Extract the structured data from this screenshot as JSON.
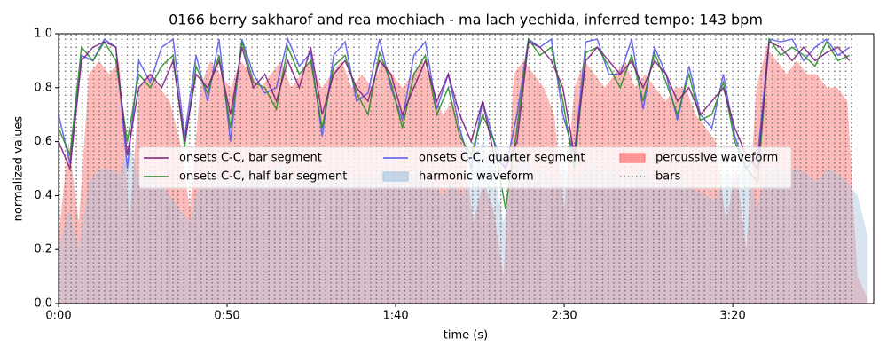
{
  "chart_data": {
    "type": "line",
    "title": "0166 berry sakharof and rea mochiach - ma lach yechida, inferred tempo: 143 bpm",
    "xlabel": "time (s)",
    "ylabel": "normalized values",
    "xlim": [
      0,
      241.8
    ],
    "xticks": [
      {
        "value": 0,
        "label": "0:00"
      },
      {
        "value": 50,
        "label": "0:50"
      },
      {
        "value": 100,
        "label": "1:40"
      },
      {
        "value": 150,
        "label": "2:30"
      },
      {
        "value": 200,
        "label": "3:20"
      }
    ],
    "ylim": [
      0,
      1
    ],
    "yticks": [
      {
        "value": 0,
        "label": "0.0"
      },
      0.2,
      0.4,
      0.6,
      0.8,
      {
        "value": 1,
        "label": "1.0"
      }
    ],
    "series": [
      {
        "name": "onsets C-C, bar segment",
        "type": "line",
        "color": "#7b1a7b",
        "x": [
          0,
          3.4,
          6.8,
          10.2,
          13.6,
          17,
          20.4,
          23.8,
          27.2,
          30.6,
          34,
          37.4,
          40.8,
          44.2,
          47.6,
          51,
          54.4,
          57.8,
          61.2,
          64.6,
          68,
          71.4,
          74.8,
          78.2,
          81.6,
          85,
          88.4,
          91.8,
          95.2,
          98.6,
          102,
          105.4,
          108.8,
          112.2,
          115.6,
          119,
          122.4,
          125.8,
          129.2,
          132.6,
          136,
          139.4,
          142.8,
          146.2,
          149.6,
          153,
          156.4,
          159.8,
          163.2,
          166.6,
          170,
          173.4,
          176.8,
          180.2,
          183.6,
          187,
          190.4,
          193.8,
          197.2,
          200.6,
          204,
          207.4,
          210.8,
          214.2,
          217.6,
          221,
          224.4,
          227.8,
          231.2,
          234.6
        ],
        "values": [
          0.6,
          0.5,
          0.9,
          0.95,
          0.97,
          0.95,
          0.55,
          0.8,
          0.85,
          0.8,
          0.9,
          0.6,
          0.85,
          0.8,
          0.9,
          0.7,
          0.95,
          0.8,
          0.85,
          0.75,
          0.9,
          0.8,
          0.95,
          0.7,
          0.85,
          0.9,
          0.8,
          0.75,
          0.9,
          0.85,
          0.7,
          0.8,
          0.9,
          0.75,
          0.85,
          0.7,
          0.6,
          0.75,
          0.55,
          0.5,
          0.6,
          0.97,
          0.95,
          0.9,
          0.8,
          0.55,
          0.9,
          0.95,
          0.9,
          0.85,
          0.9,
          0.8,
          0.9,
          0.85,
          0.75,
          0.8,
          0.7,
          0.75,
          0.8,
          0.65,
          0.55,
          0.5,
          0.97,
          0.95,
          0.9,
          0.95,
          0.9,
          0.93,
          0.95,
          0.9
        ]
      },
      {
        "name": "onsets C-C, half bar segment",
        "type": "line",
        "color": "#228b22",
        "x": [
          0,
          3.4,
          6.8,
          10.2,
          13.6,
          17,
          20.4,
          23.8,
          27.2,
          30.6,
          34,
          37.4,
          40.8,
          44.2,
          47.6,
          51,
          54.4,
          57.8,
          61.2,
          64.6,
          68,
          71.4,
          74.8,
          78.2,
          81.6,
          85,
          88.4,
          91.8,
          95.2,
          98.6,
          102,
          105.4,
          108.8,
          112.2,
          115.6,
          119,
          122.4,
          125.8,
          129.2,
          132.6,
          136,
          139.4,
          142.8,
          146.2,
          149.6,
          153,
          156.4,
          159.8,
          163.2,
          166.6,
          170,
          173.4,
          176.8,
          180.2,
          183.6,
          187,
          190.4,
          193.8,
          197.2,
          200.6,
          204,
          207.4,
          210.8,
          214.2,
          217.6,
          221,
          224.4,
          227.8,
          231.2,
          234.6
        ],
        "values": [
          0.65,
          0.55,
          0.95,
          0.9,
          0.97,
          0.9,
          0.6,
          0.85,
          0.8,
          0.88,
          0.92,
          0.58,
          0.88,
          0.78,
          0.92,
          0.65,
          0.97,
          0.82,
          0.8,
          0.72,
          0.95,
          0.85,
          0.9,
          0.65,
          0.88,
          0.92,
          0.78,
          0.7,
          0.93,
          0.82,
          0.65,
          0.85,
          0.92,
          0.7,
          0.8,
          0.62,
          0.55,
          0.7,
          0.6,
          0.35,
          0.65,
          0.98,
          0.92,
          0.95,
          0.75,
          0.5,
          0.93,
          0.95,
          0.88,
          0.8,
          0.92,
          0.75,
          0.93,
          0.82,
          0.7,
          0.85,
          0.68,
          0.7,
          0.82,
          0.6,
          0.5,
          0.45,
          0.98,
          0.92,
          0.95,
          0.92,
          0.88,
          0.97,
          0.9,
          0.92
        ]
      },
      {
        "name": "onsets C-C, quarter segment",
        "type": "line",
        "color": "#5555ee",
        "x": [
          0,
          3.4,
          6.8,
          10.2,
          13.6,
          17,
          20.4,
          23.8,
          27.2,
          30.6,
          34,
          37.4,
          40.8,
          44.2,
          47.6,
          51,
          54.4,
          57.8,
          61.2,
          64.6,
          68,
          71.4,
          74.8,
          78.2,
          81.6,
          85,
          88.4,
          91.8,
          95.2,
          98.6,
          102,
          105.4,
          108.8,
          112.2,
          115.6,
          119,
          122.4,
          125.8,
          129.2,
          132.6,
          136,
          139.4,
          142.8,
          146.2,
          149.6,
          153,
          156.4,
          159.8,
          163.2,
          166.6,
          170,
          173.4,
          176.8,
          180.2,
          183.6,
          187,
          190.4,
          193.8,
          197.2,
          200.6,
          204,
          207.4,
          210.8,
          214.2,
          217.6,
          221,
          224.4,
          227.8,
          231.2,
          234.6
        ],
        "values": [
          0.7,
          0.52,
          0.92,
          0.9,
          0.98,
          0.95,
          0.5,
          0.9,
          0.82,
          0.95,
          0.98,
          0.62,
          0.92,
          0.75,
          0.98,
          0.6,
          0.98,
          0.85,
          0.78,
          0.8,
          0.98,
          0.88,
          0.93,
          0.62,
          0.92,
          0.97,
          0.75,
          0.78,
          0.98,
          0.8,
          0.68,
          0.92,
          0.97,
          0.72,
          0.85,
          0.65,
          0.5,
          0.75,
          0.6,
          0.5,
          0.7,
          0.98,
          0.95,
          0.98,
          0.7,
          0.55,
          0.97,
          0.98,
          0.85,
          0.85,
          0.98,
          0.72,
          0.95,
          0.85,
          0.68,
          0.88,
          0.7,
          0.65,
          0.85,
          0.62,
          0.5,
          0.55,
          0.98,
          0.97,
          0.98,
          0.9,
          0.95,
          0.98,
          0.92,
          0.95
        ]
      },
      {
        "name": "harmonic waveform",
        "type": "area",
        "color": "#a9c6df",
        "x": [
          0,
          3,
          6,
          9,
          12,
          15,
          18,
          21,
          24,
          27,
          30,
          33,
          36,
          39,
          42,
          45,
          48,
          51,
          54,
          57,
          60,
          63,
          66,
          69,
          72,
          75,
          78,
          81,
          84,
          87,
          90,
          93,
          96,
          99,
          102,
          105,
          108,
          111,
          114,
          117,
          120,
          123,
          126,
          129,
          132,
          135,
          138,
          141,
          144,
          147,
          150,
          153,
          156,
          159,
          162,
          165,
          168,
          171,
          174,
          177,
          180,
          183,
          186,
          189,
          192,
          195,
          198,
          201,
          204,
          207,
          210,
          213,
          216,
          219,
          222,
          225,
          228,
          231,
          234,
          237,
          240
        ],
        "values": [
          0.2,
          0.35,
          0.2,
          0.45,
          0.5,
          0.5,
          0.48,
          0.6,
          0.45,
          0.5,
          0.45,
          0.4,
          0.35,
          0.3,
          0.45,
          0.5,
          0.48,
          0.45,
          0.5,
          0.48,
          0.45,
          0.5,
          0.52,
          0.45,
          0.48,
          0.5,
          0.45,
          0.48,
          0.5,
          0.45,
          0.48,
          0.45,
          0.5,
          0.48,
          0.45,
          0.48,
          0.5,
          0.45,
          0.4,
          0.45,
          0.4,
          0.55,
          0.6,
          0.5,
          0.3,
          0.5,
          0.55,
          0.5,
          0.48,
          0.45,
          0.5,
          0.45,
          0.5,
          0.52,
          0.48,
          0.5,
          0.45,
          0.48,
          0.5,
          0.45,
          0.45,
          0.48,
          0.45,
          0.42,
          0.4,
          0.38,
          0.5,
          0.45,
          0.55,
          0.35,
          0.5,
          0.52,
          0.48,
          0.5,
          0.48,
          0.45,
          0.5,
          0.48,
          0.45,
          0.4,
          0.25
        ]
      },
      {
        "name": "percussive waveform",
        "type": "area",
        "color": "#ff6666",
        "x": [
          0,
          3,
          6,
          9,
          12,
          15,
          18,
          21,
          24,
          27,
          30,
          33,
          36,
          39,
          42,
          45,
          48,
          51,
          54,
          57,
          60,
          63,
          66,
          69,
          72,
          75,
          78,
          81,
          84,
          87,
          90,
          93,
          96,
          99,
          102,
          105,
          108,
          111,
          114,
          117,
          120,
          123,
          126,
          129,
          132,
          135,
          138,
          141,
          144,
          147,
          150,
          153,
          156,
          159,
          162,
          165,
          168,
          171,
          174,
          177,
          180,
          183,
          186,
          189,
          192,
          195,
          198,
          201,
          204,
          207,
          210,
          213,
          216,
          219,
          222,
          225,
          228,
          231,
          234,
          237,
          240
        ],
        "values": [
          0.25,
          0.6,
          0.3,
          0.85,
          0.9,
          0.85,
          0.9,
          0.3,
          0.8,
          0.85,
          0.8,
          0.75,
          0.6,
          0.35,
          0.8,
          0.9,
          0.85,
          0.8,
          0.9,
          0.85,
          0.8,
          0.85,
          0.9,
          0.8,
          0.85,
          0.9,
          0.8,
          0.85,
          0.9,
          0.8,
          0.85,
          0.8,
          0.9,
          0.85,
          0.8,
          0.85,
          0.9,
          0.8,
          0.7,
          0.75,
          0.6,
          0.3,
          0.45,
          0.35,
          0.1,
          0.85,
          0.9,
          0.85,
          0.8,
          0.7,
          0.35,
          0.8,
          0.9,
          0.85,
          0.8,
          0.85,
          0.9,
          0.8,
          0.85,
          0.8,
          0.75,
          0.8,
          0.8,
          0.7,
          0.65,
          0.6,
          0.3,
          0.5,
          0.2,
          0.8,
          0.95,
          0.9,
          0.85,
          0.9,
          0.85,
          0.85,
          0.8,
          0.8,
          0.75,
          0.1,
          0.02
        ]
      },
      {
        "name": "bars",
        "type": "vlines",
        "color": "#777777",
        "x": [
          0.3,
          2.0,
          3.7,
          5.3,
          7.0,
          8.7,
          10.4,
          12.1,
          13.7,
          15.4,
          17.1,
          18.8,
          20.4,
          22.1,
          23.8,
          25.5,
          27.2,
          28.8,
          30.5,
          32.2,
          33.9,
          35.5,
          37.2,
          38.9,
          40.6,
          42.3,
          43.9,
          45.6,
          47.3,
          49.0,
          50.6,
          52.3,
          54.0,
          55.7,
          57.4,
          59.0,
          60.7,
          62.4,
          64.1,
          65.7,
          67.4,
          69.1,
          70.8,
          72.5,
          74.1,
          75.8,
          77.5,
          79.2,
          80.8,
          82.5,
          84.2,
          85.9,
          87.6,
          89.2,
          90.9,
          92.6,
          94.3,
          95.9,
          97.6,
          99.3,
          101.0,
          102.7,
          104.3,
          106.0,
          107.7,
          109.4,
          111.0,
          112.7,
          114.4,
          116.1,
          117.8,
          119.4,
          121.1,
          122.8,
          124.5,
          126.1,
          127.8,
          129.5,
          131.2,
          132.9,
          134.5,
          136.2,
          137.9,
          139.6,
          141.2,
          142.9,
          144.6,
          146.3,
          148.0,
          149.6,
          151.3,
          153.0,
          154.7,
          156.3,
          158.0,
          159.7,
          161.4,
          163.1,
          164.7,
          166.4,
          168.1,
          169.8,
          171.4,
          173.1,
          174.8,
          176.5,
          178.2,
          179.8,
          181.5,
          183.2,
          184.9,
          186.5,
          188.2,
          189.9,
          191.6,
          193.3,
          194.9,
          196.6,
          198.3,
          200.0,
          201.6,
          203.3,
          205.0,
          206.7,
          208.4,
          210.0,
          211.7,
          213.4,
          215.1,
          216.7,
          218.4,
          220.1,
          221.8,
          223.5,
          225.1,
          226.8,
          228.5,
          230.2,
          231.8,
          233.5,
          235.2
        ]
      }
    ]
  }
}
